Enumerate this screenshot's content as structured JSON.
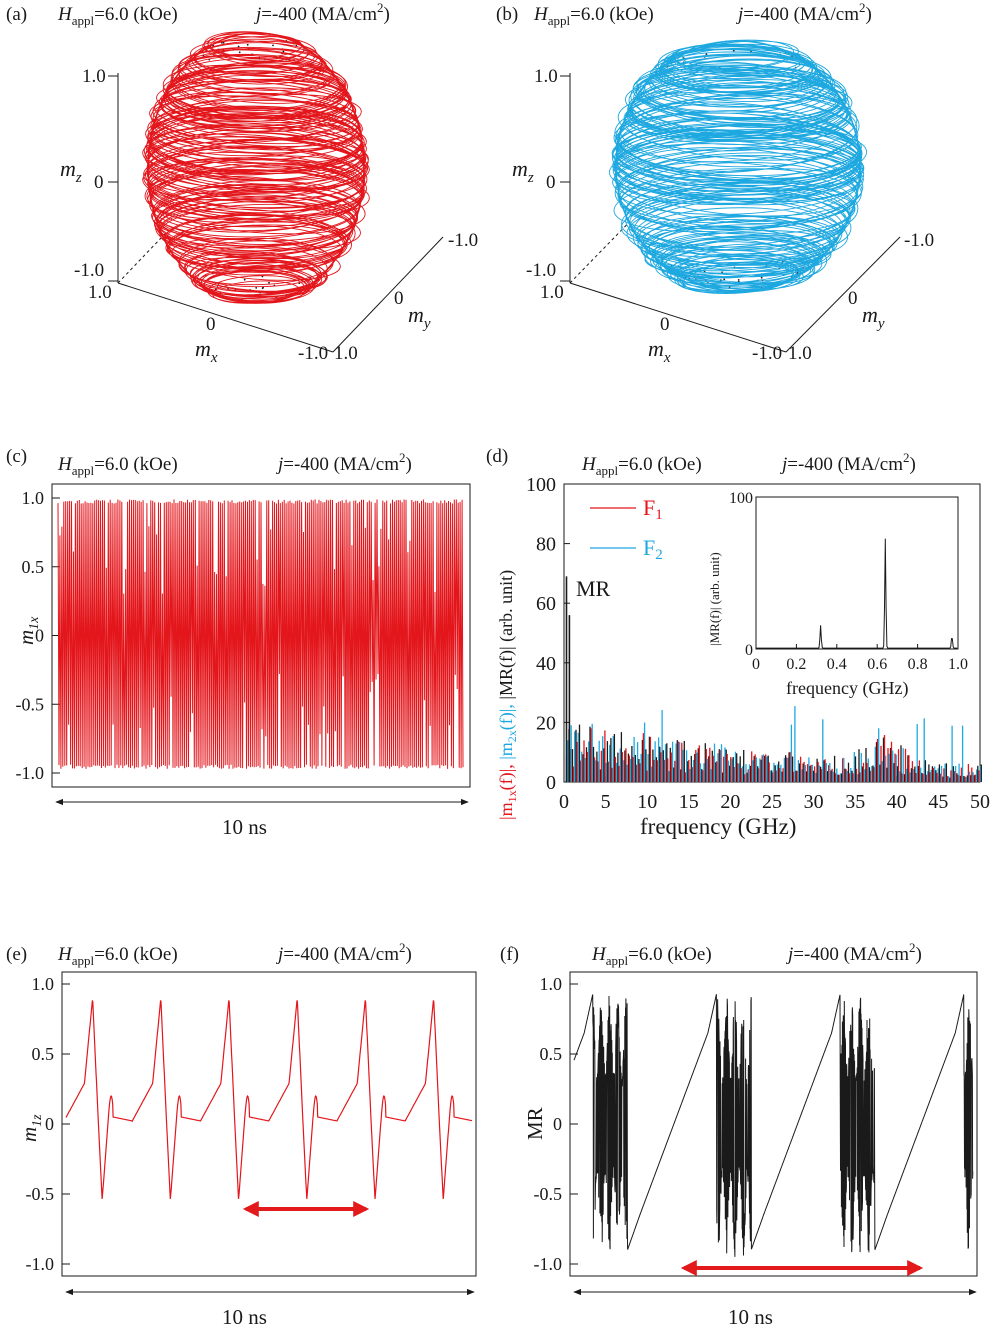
{
  "chart_data": [
    {
      "panel": "(a)",
      "type": "3d-trajectory",
      "header": {
        "h_label": "H",
        "h_sub": "appl",
        "h_value": "=6.0 (kOe)",
        "j_label": "j",
        "j_value": "=-400 (MA/cm",
        "j_sup": "2",
        "j_close": ")"
      },
      "color": "#e3161c",
      "axes": {
        "z": {
          "label": "m",
          "sub": "z",
          "ticks": [
            "1.0",
            "0",
            "-1.0"
          ]
        },
        "x": {
          "label": "m",
          "sub": "x",
          "ticks": [
            "1.0",
            "0",
            "-1.0"
          ]
        },
        "y": {
          "label": "m",
          "sub": "y",
          "ticks": [
            "-1.0",
            "0",
            "1.0"
          ]
        }
      }
    },
    {
      "panel": "(b)",
      "type": "3d-trajectory",
      "header": {
        "h_label": "H",
        "h_sub": "appl",
        "h_value": "=6.0 (kOe)",
        "j_label": "j",
        "j_value": "=-400 (MA/cm",
        "j_sup": "2",
        "j_close": ")"
      },
      "color": "#1ea8e0",
      "axes": {
        "z": {
          "label": "m",
          "sub": "z",
          "ticks": [
            "1.0",
            "0",
            "-1.0"
          ]
        },
        "x": {
          "label": "m",
          "sub": "x",
          "ticks": [
            "1.0",
            "0",
            "-1.0"
          ]
        },
        "y": {
          "label": "m",
          "sub": "y",
          "ticks": [
            "-1.0",
            "0",
            "1.0"
          ]
        }
      }
    },
    {
      "panel": "(c)",
      "type": "line",
      "header": {
        "h_label": "H",
        "h_sub": "appl",
        "h_value": "=6.0 (kOe)",
        "j_label": "j",
        "j_value": "=-400 (MA/cm",
        "j_sup": "2",
        "j_close": ")"
      },
      "ylabel": "m",
      "ylabel_sub": "1x",
      "ylim": [
        -1.0,
        1.0
      ],
      "yticks": [
        "1.0",
        "0.5",
        "0",
        "-0.5",
        "-1.0"
      ],
      "time_span_label": "10 ns",
      "color": "#e3161c",
      "description_values": {
        "oscillation_bounds": [
          -0.97,
          0.99
        ],
        "sample_count": 420
      }
    },
    {
      "panel": "(d)",
      "type": "bar",
      "header": {
        "h_label": "H",
        "h_sub": "appl",
        "h_value": "=6.0 (kOe)",
        "j_label": "j",
        "j_value": "=-400 (MA/cm",
        "j_sup": "2",
        "j_close": ")"
      },
      "xlabel": "frequency (GHz)",
      "ylabel_parts": [
        {
          "text": "|m",
          "sub": "1x",
          "tail": "(f)|, ",
          "color": "#e3161c"
        },
        {
          "text": "|m",
          "sub": "2x",
          "tail": "(f)|, ",
          "color": "#1ea8e0"
        },
        {
          "text": "|MR(f)| (arb. unit)",
          "sub": "",
          "tail": "",
          "color": "#1a1a1a"
        }
      ],
      "xlim": [
        0,
        50
      ],
      "ylim": [
        0,
        100
      ],
      "xticks": [
        "0",
        "5",
        "10",
        "15",
        "20",
        "25",
        "30",
        "35",
        "40",
        "45",
        "50"
      ],
      "yticks": [
        "0",
        "20",
        "40",
        "60",
        "80",
        "100"
      ],
      "legend": [
        {
          "name": "F",
          "sub": "1",
          "color": "#e3161c"
        },
        {
          "name": "F",
          "sub": "2",
          "color": "#1ea8e0"
        }
      ],
      "annotation": "MR",
      "mr_peaks": [
        {
          "f": 0.3,
          "v": 69
        },
        {
          "f": 0.65,
          "v": 56
        }
      ],
      "inset": {
        "type": "line",
        "xlabel": "frequency (GHz)",
        "ylabel": "|MR(f)| (arb. unit)",
        "xlim": [
          0,
          1.0
        ],
        "ylim": [
          0,
          100
        ],
        "xticks": [
          "0",
          "0.2",
          "0.4",
          "0.6",
          "0.8",
          "1.0"
        ],
        "yticks": [
          "0",
          "100"
        ],
        "peaks": [
          {
            "f": 0.32,
            "v": 15
          },
          {
            "f": 0.64,
            "v": 72
          },
          {
            "f": 0.97,
            "v": 8
          }
        ],
        "color": "#1a1a1a"
      }
    },
    {
      "panel": "(e)",
      "type": "line",
      "header": {
        "h_label": "H",
        "h_sub": "appl",
        "h_value": "=6.0 (kOe)",
        "j_label": "j",
        "j_value": "=-400 (MA/cm",
        "j_sup": "2",
        "j_close": ")"
      },
      "ylabel": "m",
      "ylabel_sub": "1z",
      "ylim": [
        -1.0,
        1.0
      ],
      "yticks": [
        "1.0",
        "0.5",
        "0",
        "-0.5",
        "-1.0"
      ],
      "time_span_label": "10 ns",
      "color": "#e3161c",
      "period_ns": 1.68,
      "description_values": {
        "peak_max": 0.9,
        "peak_min": -0.54
      }
    },
    {
      "panel": "(f)",
      "type": "line",
      "header": {
        "h_label": "H",
        "h_sub": "appl",
        "h_value": "=6.0 (kOe)",
        "j_label": "j",
        "j_value": "=-400 (MA/cm",
        "j_sup": "2",
        "j_close": ")"
      },
      "ylabel": "MR",
      "ylim": [
        -1.0,
        1.0
      ],
      "yticks": [
        "1.0",
        "0.5",
        "0",
        "-0.5",
        "-1.0"
      ],
      "time_span_label": "10 ns",
      "color": "#1a1a1a",
      "period_ns": 3.1
    }
  ],
  "colors": {
    "red": "#e3161c",
    "blue": "#1ea8e0",
    "black": "#1a1a1a",
    "arrow_red": "#e31a1c"
  }
}
